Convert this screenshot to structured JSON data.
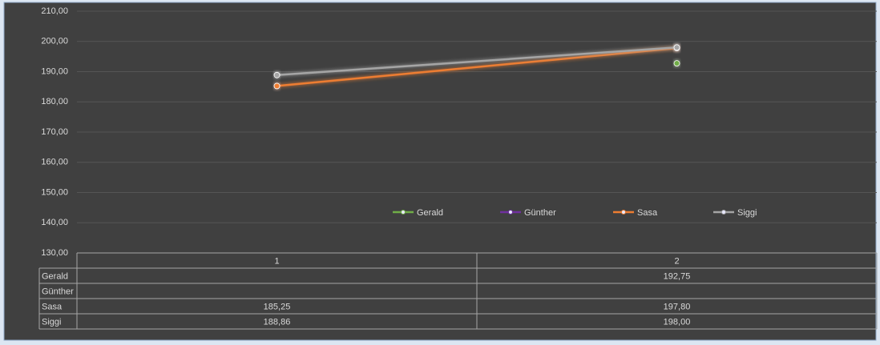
{
  "chart_data": {
    "type": "line",
    "categories": [
      "1",
      "2"
    ],
    "series": [
      {
        "name": "Gerald",
        "color": "#70ad47",
        "values": [
          null,
          192.75
        ],
        "value_labels": [
          null,
          "192,75"
        ]
      },
      {
        "name": "Günther",
        "color": "#7030a0",
        "values": [
          null,
          null
        ],
        "value_labels": [
          null,
          null
        ]
      },
      {
        "name": "Sasa",
        "color": "#ed7d31",
        "values": [
          185.25,
          197.8
        ],
        "value_labels": [
          "185,25",
          "197,80"
        ]
      },
      {
        "name": "Siggi",
        "color": "#a5a5a5",
        "values": [
          188.86,
          198
        ],
        "value_labels": [
          "188,86",
          "198,00"
        ]
      }
    ],
    "ylim": [
      130,
      210
    ],
    "yticks": [
      {
        "value": 130,
        "label": "130,00"
      },
      {
        "value": 140,
        "label": "140,00"
      },
      {
        "value": 150,
        "label": "150,00"
      },
      {
        "value": 160,
        "label": "160,00"
      },
      {
        "value": 170,
        "label": "170,00"
      },
      {
        "value": 180,
        "label": "180,00"
      },
      {
        "value": 190,
        "label": "190,00"
      },
      {
        "value": 200,
        "label": "200,00"
      },
      {
        "value": 210,
        "label": "210,00"
      }
    ],
    "grid": true,
    "legend": "center",
    "data_table": true
  }
}
